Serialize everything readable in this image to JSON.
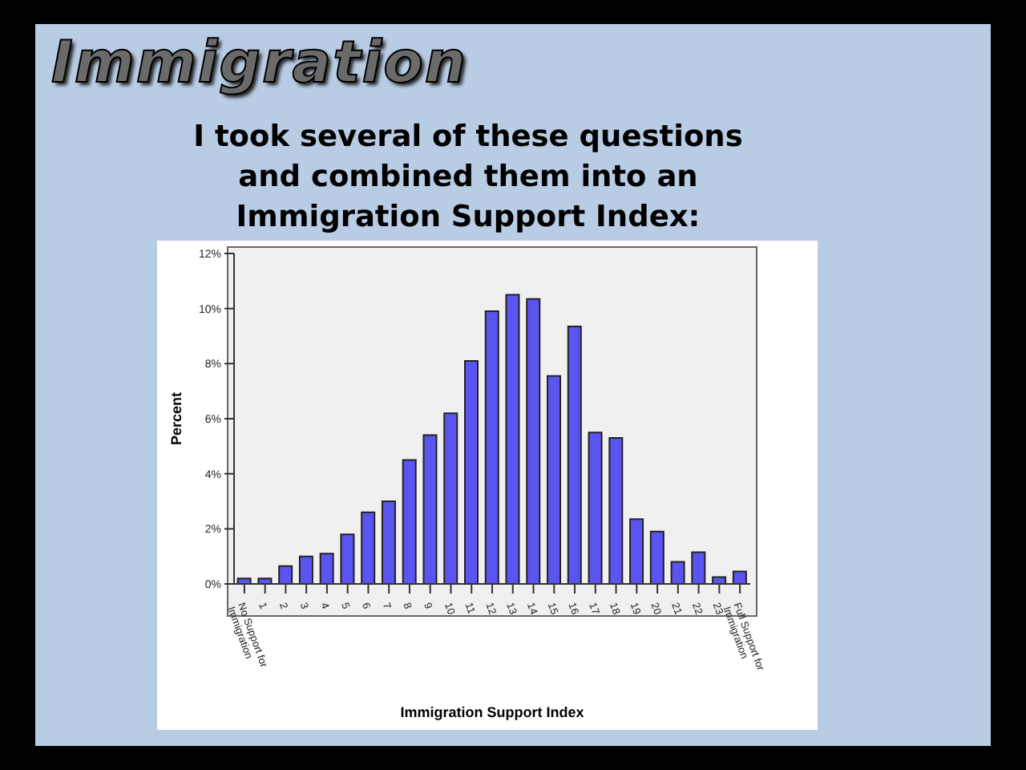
{
  "chart_data": {
    "type": "bar",
    "title": "Immigration",
    "subtitle": "I took several of these questions\nand combined them into an\nImmigration Support Index:",
    "xlabel": "Immigration Support Index",
    "ylabel": "Percent",
    "categories": [
      "No Support for Immigration",
      "1",
      "2",
      "3",
      "4",
      "5",
      "6",
      "7",
      "8",
      "9",
      "10",
      "11",
      "12",
      "13",
      "14",
      "15",
      "16",
      "17",
      "18",
      "19",
      "20",
      "21",
      "22",
      "23",
      "Full Support for Immigration"
    ],
    "values": [
      0.2,
      0.2,
      0.65,
      1.0,
      1.1,
      1.8,
      2.6,
      3.0,
      4.5,
      5.4,
      6.2,
      8.1,
      9.9,
      10.5,
      10.35,
      7.55,
      9.35,
      5.5,
      5.3,
      2.35,
      1.9,
      0.8,
      1.15,
      0.25,
      0.45
    ],
    "color": "#5a55f0",
    "ylim": [
      0,
      12
    ],
    "yticks": [
      {
        "value": 0,
        "label": "0%"
      },
      {
        "value": 2,
        "label": "2%"
      },
      {
        "value": 4,
        "label": "4%"
      },
      {
        "value": 6,
        "label": "6%"
      },
      {
        "value": 8,
        "label": "8%"
      },
      {
        "value": 10,
        "label": "10%"
      },
      {
        "value": 12,
        "label": "12%"
      }
    ]
  }
}
